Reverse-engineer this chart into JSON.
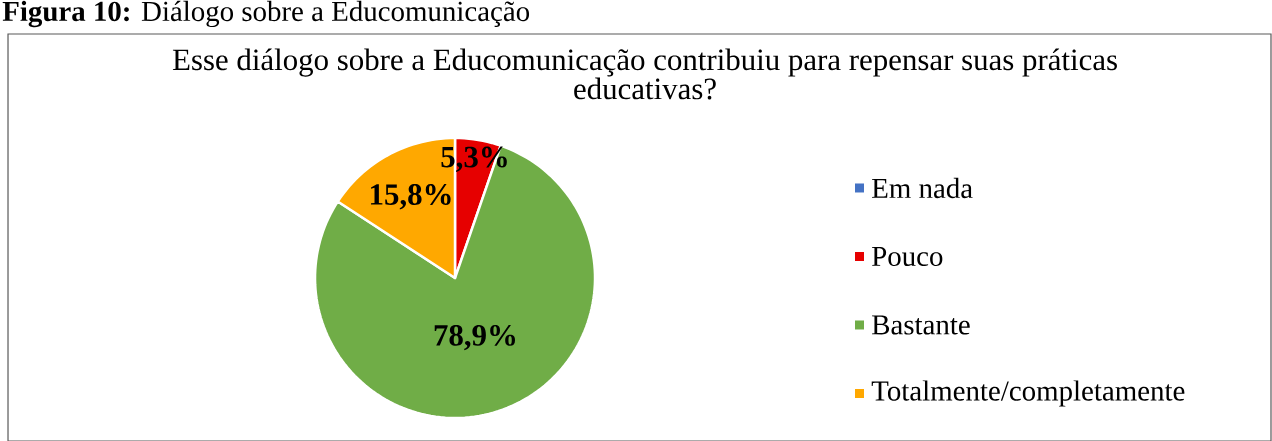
{
  "chart_data": {
    "type": "pie",
    "title": "Esse diálogo sobre a Educomunicação contribuiu para repensar suas práticas educativas?",
    "annotations": [
      "**Figura 10:** Diálogo sobre a Educomunicação"
    ],
    "categories": [
      "Em nada",
      "Pouco",
      "Bastante",
      "Totalmente/completamente"
    ],
    "values": [
      0,
      5.3,
      78.9,
      15.8
    ],
    "colors": [
      "#4472c4",
      "#e60000",
      "#70ad47",
      "#ffa800"
    ],
    "value_labels": [
      null,
      "5,3%",
      "78,9%",
      "15,8%"
    ],
    "legend": "right"
  }
}
